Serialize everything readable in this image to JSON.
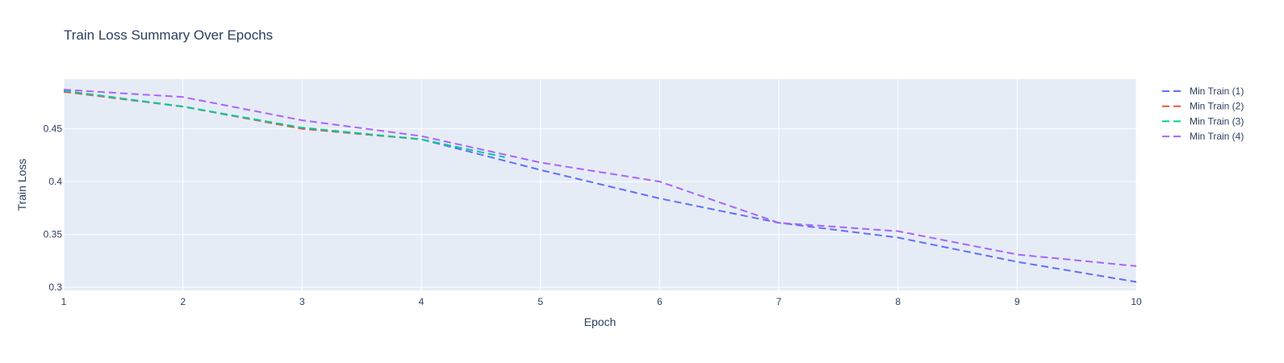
{
  "chart_data": {
    "type": "line",
    "title": "Train Loss Summary Over Epochs",
    "xlabel": "Epoch",
    "ylabel": "Train Loss",
    "xlim": [
      1,
      10
    ],
    "ylim": [
      0.297,
      0.497
    ],
    "xticks": [
      1,
      2,
      3,
      4,
      5,
      6,
      7,
      8,
      9,
      10
    ],
    "xtick_labels": [
      "1",
      "2",
      "3",
      "4",
      "5",
      "6",
      "7",
      "8",
      "9",
      "10"
    ],
    "yticks": [
      0.3,
      0.35,
      0.4,
      0.45
    ],
    "ytick_labels": [
      "0.3",
      "0.35",
      "0.4",
      "0.45"
    ],
    "grid": true,
    "legend_position": "top-right",
    "plot_background": "#e5ecf6",
    "series": [
      {
        "name": "Min Train (1)",
        "color": "#636efa",
        "dash": "dash",
        "x": [
          1,
          2,
          3,
          4,
          5,
          6,
          7,
          8,
          9,
          10
        ],
        "y": [
          0.485,
          0.471,
          0.45,
          0.44,
          0.411,
          0.384,
          0.361,
          0.347,
          0.324,
          0.305
        ]
      },
      {
        "name": "Min Train (2)",
        "color": "#ef553b",
        "dash": "dash",
        "x": [
          1,
          2,
          3,
          4
        ],
        "y": [
          0.485,
          0.471,
          0.45,
          0.44
        ]
      },
      {
        "name": "Min Train (3)",
        "color": "#00cc96",
        "dash": "dash",
        "x": [
          1,
          2,
          3,
          4,
          4.7
        ],
        "y": [
          0.486,
          0.471,
          0.451,
          0.44,
          0.423
        ]
      },
      {
        "name": "Min Train (4)",
        "color": "#ab63fa",
        "dash": "dash",
        "x": [
          1,
          2,
          3,
          4,
          5,
          6,
          7,
          8,
          9,
          10
        ],
        "y": [
          0.487,
          0.48,
          0.458,
          0.443,
          0.418,
          0.4,
          0.361,
          0.353,
          0.331,
          0.32
        ]
      }
    ]
  }
}
